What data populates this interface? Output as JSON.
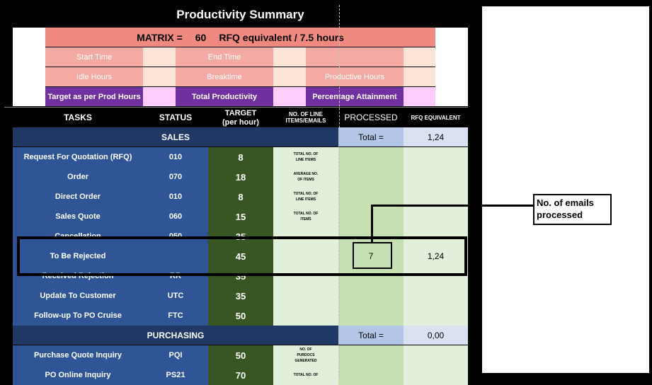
{
  "title": "Productivity Summary",
  "matrix": {
    "label": "MATRIX =",
    "value": "60",
    "unit": "RFQ equivalent / 7.5 hours"
  },
  "summary": {
    "start_time": "Start Time",
    "end_time": "End Time",
    "idle_hours": "Idle Hours",
    "breaktime": "Breaktime",
    "productive_hours": "Productive Hours",
    "target_prod_hours": "Target as per Prod Hours",
    "total_productivity": "Total Productivity",
    "percentage_attainment": "Percentage Attainment"
  },
  "headers": {
    "tasks": "TASKS",
    "status": "STATUS",
    "target": "TARGET",
    "target_sub": "(per hour)",
    "line_items": "NO. OF LINE ITEMS/EMAILS",
    "processed": "PROCESSED",
    "rfq_equiv": "RFQ EQUIVALENT"
  },
  "sales": {
    "section": "SALES",
    "total_label": "Total =",
    "total_value": "1,24",
    "rows": [
      {
        "task": "Request For Quotation (RFQ)",
        "status": "010",
        "target": "8",
        "note": "TOTAL NO. OF LINE ITEMS"
      },
      {
        "task": "Order",
        "status": "070",
        "target": "18",
        "note": "AVERAGE NO. OF ITEMS"
      },
      {
        "task": "Direct Order",
        "status": "010",
        "target": "8",
        "note": "TOTAL NO. OF LINE ITEMS"
      },
      {
        "task": "Sales Quote",
        "status": "060",
        "target": "15",
        "note": "TOTAL NO. OF ITEMS"
      },
      {
        "task": "Cancellation",
        "status": "050",
        "target": "35",
        "note": ""
      },
      {
        "task": "To Be Rejected",
        "status": "",
        "target": "45",
        "note": "",
        "processed": "7",
        "rfq": "1,24"
      },
      {
        "task": "Received Rejection",
        "status": "RR",
        "target": "35",
        "note": ""
      },
      {
        "task": "Update To Customer",
        "status": "UTC",
        "target": "35",
        "note": ""
      },
      {
        "task": "Follow-up To PO Cruise",
        "status": "FTC",
        "target": "50",
        "note": ""
      }
    ]
  },
  "purchasing": {
    "section": "PURCHASING",
    "total_label": "Total =",
    "total_value": "0,00",
    "rows": [
      {
        "task": "Purchase Quote Inquiry",
        "status": "PQI",
        "target": "50",
        "note": "NO. OF PURDOCS GENERATED"
      },
      {
        "task": "PO Online Inquiry",
        "status": "PS21",
        "target": "70",
        "note": "TOTAL NO. OF"
      }
    ]
  },
  "callout": {
    "text": "No. of emails processed"
  }
}
